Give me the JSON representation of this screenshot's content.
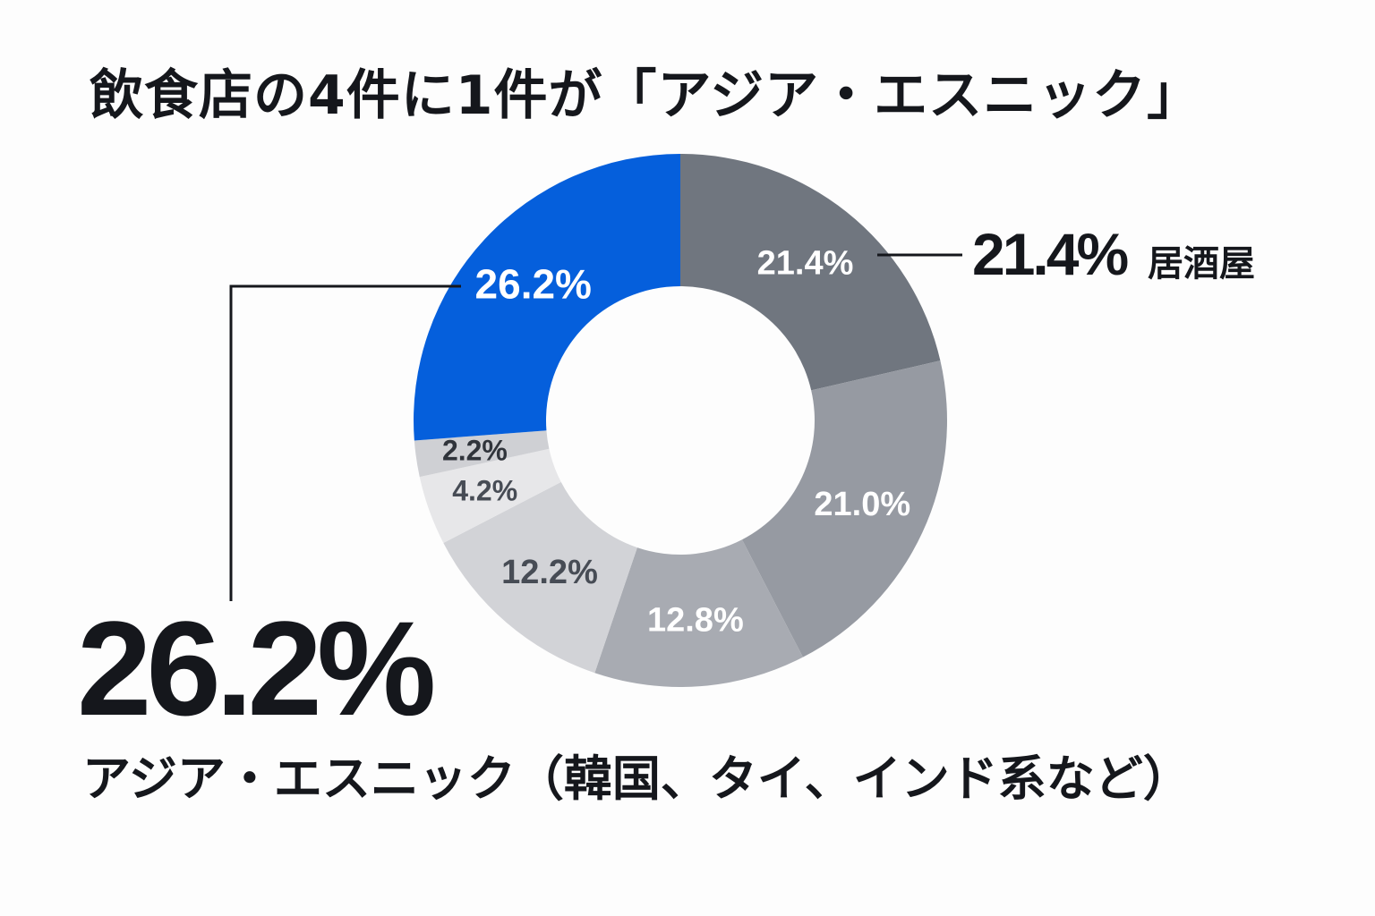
{
  "chart_data": {
    "type": "pie",
    "title": "飲食店の4件に1件が「アジア・エスニック」",
    "slices": [
      {
        "value": 21.4,
        "label": "21.4%",
        "name": "居酒屋",
        "color": "#70767f",
        "text_color": "#ffffff"
      },
      {
        "value": 21.0,
        "label": "21.0%",
        "color": "#969aa2",
        "text_color": "#ffffff"
      },
      {
        "value": 12.8,
        "label": "12.8%",
        "color": "#a8abb2",
        "text_color": "#ffffff"
      },
      {
        "value": 12.2,
        "label": "12.2%",
        "color": "#d2d3d7",
        "text_color": "#474c55"
      },
      {
        "value": 4.2,
        "label": "4.2%",
        "color": "#e7e7e9",
        "text_color": "#474c55"
      },
      {
        "value": 2.2,
        "label": "2.2%",
        "color": "#cfd0d4",
        "text_color": "#30343b"
      },
      {
        "value": 26.2,
        "label": "26.2%",
        "name": "アジア・エスニック（韓国、タイ、インド系など）",
        "color": "#055fdc",
        "text_color": "#ffffff"
      }
    ],
    "callouts": {
      "highlight_value": "26.2%",
      "highlight_label": "アジア・エスニック（韓国、タイ、インド系など）",
      "right_value": "21.4%",
      "right_label": "居酒屋"
    }
  }
}
